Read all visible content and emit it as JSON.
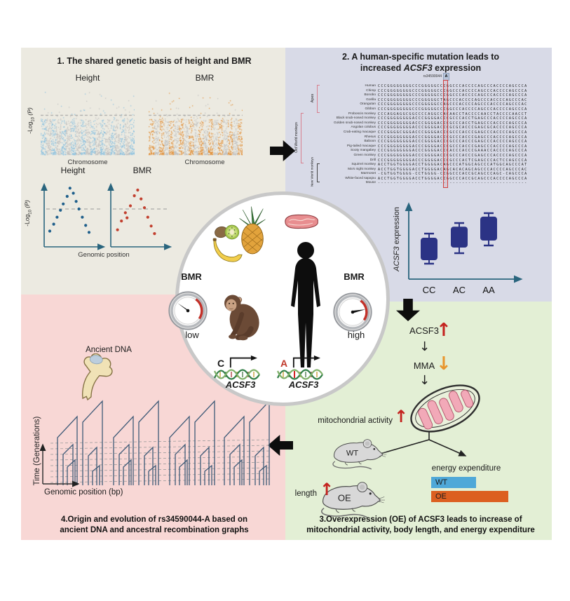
{
  "colors": {
    "panel1_bg": "#ECEAE1",
    "panel2_bg": "#D8DAE7",
    "panel3_bg": "#E3EFD5",
    "panel4_bg": "#F8D7D5",
    "accent_red": "#C4231F",
    "accent_orange": "#E8952C",
    "navy_box": "#2B3385",
    "wt_bar_blue": "#4FA8D8",
    "oe_bar_orange": "#DC5F20",
    "axis_teal": "#2A657E",
    "height_manhattan_blue": "#85BEDF",
    "bmr_manhattan_orange": "#E08A2E",
    "manhattan_gray": "#BDBDBD",
    "tree_line": "#3E5A77",
    "snp_box_red": "#D14040"
  },
  "panel1": {
    "title": "1. The shared genetic basis of height and BMR",
    "gwas_height_label": "Height",
    "gwas_bmr_label": "BMR",
    "ylabel_pre": "-Log",
    "ylabel_sub": "10",
    "ylabel_post": " (P)",
    "xlabel_chrom": "Chromosome",
    "scatter_height_label": "Height",
    "scatter_bmr_label": "BMR",
    "xlabel_genomic": "Genomic position"
  },
  "panel2": {
    "title_line1": "2. A human-specific mutation leads to",
    "title_pre": "increased ",
    "title_gene": "ACSF3",
    "title_post": " expression",
    "snp_label": "rs34590044",
    "snp_allele": "A",
    "group_apes": "Apes",
    "group_owm": "Old World monkeys",
    "group_nwm": "New World monkeys",
    "expr_ylabel_gene": "ACSF3",
    "expr_ylabel_post": " expression",
    "alignment": [
      {
        "name": "Human",
        "seq": "CCCGGGGGGGGCCCGGGGGCCCGGCCCACCCCAGCCCACCCCAGCCCA"
      },
      {
        "name": "Chimp",
        "seq": "CCCGGGGGGGGCCCGGGGGCCCGGCCCACCCCAGCCCACCCCAGCCCA"
      },
      {
        "name": "Bonobo",
        "seq": "CCCGGGGGGGGCCCGGGGGCCCGGCCCACCCCAGCCCACCCCAGCCCA"
      },
      {
        "name": "Gorilla",
        "seq": "CCCGGGGGGGGCCCGGGGGCTAGCCCACCCCAGCCCACCCCAGCCCAC"
      },
      {
        "name": "Orangutan",
        "seq": "CCCGGGGGGGGCCCGGGGGCCAGCCCACCCCAGCCCACCCCAGCCCAC"
      },
      {
        "name": "Gibbon",
        "seq": "CCCGGGGGGGGCCCGGGGGCCCGGCCCACCCCAGCCCACCCCAGCCCA"
      },
      {
        "name": "Proboscis monkey",
        "seq": "CCCAGGAGGCGGCCCCAGGCCACAACCTACCCCAACCTACCCCAACCT"
      },
      {
        "name": "Black snub-nosed monkey",
        "seq": "CCCGGGGGGGGACCCGGGGACCCGCCCACCTGAGCCCACCCCAGCCCA"
      },
      {
        "name": "Golden snub-nosed monkey",
        "seq": "CCCGGGGGGGGACCCGGGGACCCGCCCACCTGAGCCCACCCCAGCCCA"
      },
      {
        "name": "Angolan colobus",
        "seq": "CCCGGGGGGGGACCCGGGGACCCGCGCACCCGAGCGCACCCCAGCCCA"
      },
      {
        "name": "Crab-eating macaque",
        "seq": "CCCGGGGCGGGACCCGGGGACCCGCCCACCCGAGCCCACCCCAGCCCA"
      },
      {
        "name": "Rhesus",
        "seq": "CCCGGGGGGGGACCCGGGGACCCGCCCACCCGAGCCCACCCCAGCCCA"
      },
      {
        "name": "Baboon",
        "seq": "CCCGGGGGGGGACCCGGGGACCCGCCCACCCGAGCCCACCCCAGCCCA"
      },
      {
        "name": "Pig-tailed macaque",
        "seq": "CCCGGGGGGGGACCCGGGGACCCGCCCACCCGAGCCCACCCCAGCCCA"
      },
      {
        "name": "Sooty mangabey",
        "seq": "CCCGGGGGGGGACCCGGGGACCCACCCACCCGAAACCACCCCAGCCCA"
      },
      {
        "name": "Green monkey",
        "seq": "CCCGGGGGGGGACCCGGGGACCCGCCCACCCGAGCCCACCCCAGCCCA"
      },
      {
        "name": "Drill",
        "seq": "CCCGGGGGGGGACCCGGGGACCCGCCCACTCGAGCCCACTCCAGCCCA"
      },
      {
        "name": "Squirrel monkey",
        "seq": "ACCTGGTGGGGACCTGGGGACAGCCCATGGCAGCCCATGGCAGCCCAT"
      },
      {
        "name": "Ma's night monkey",
        "seq": "ACCTGGTGGGGACCTGGGGACAGCACACAGCAGCCCACCCCAGCCCAC"
      },
      {
        "name": "Marmoset",
        "seq": "-CGTGGTGGGG-CCTGGGG-CCGGCCCACCGCAGCCCAGC-CAGCCCA"
      },
      {
        "name": "White-faced sapajou",
        "seq": "ACCTGGTGGGGACCTGGGGACCGGCCCACCGCAGCCCACCCCAGCCCA"
      },
      {
        "name": "Mouse",
        "seq": "------------------------------------------------"
      }
    ],
    "highlight_col": 21
  },
  "panel3": {
    "acsf3": "ACSF3",
    "mma": "MMA",
    "mito_label": "mitochondrial activity",
    "length_label": "length",
    "energy_label": "energy expenditure",
    "wt": "WT",
    "oe": "OE",
    "caption_line1": "3.Overexpression (OE) of ACSF3 leads to increase of",
    "caption_line2": "mitochondrial activity, body length, and energy expenditure"
  },
  "panel4": {
    "ancient_dna": "Ancient DNA",
    "ylabel": "Time (Generations)",
    "xlabel": "Genomic position (bp)",
    "caption_line1": "4.Origin and evolution of rs34590044-A based on",
    "caption_line2": "ancient DNA and ancestral recombination graphs"
  },
  "center": {
    "bmr": "BMR",
    "low": "low",
    "high": "high",
    "allele_low": "C",
    "allele_high": "A",
    "gene": "ACSF3"
  },
  "chart_data": [
    {
      "id": "gwas_height",
      "type": "scatter",
      "style": "manhattan",
      "title": "Height",
      "ylabel": "-Log10 (P)",
      "xlabel": "Chromosome",
      "accent_color": "#85BEDF",
      "base_color": "#BDBDBD",
      "threshold_frac": 0.4,
      "note": "dense GWAS Manhattan plot, alternating chromosome colors, significance threshold dashed"
    },
    {
      "id": "gwas_bmr",
      "type": "scatter",
      "style": "manhattan",
      "title": "BMR",
      "ylabel": "-Log10 (P)",
      "xlabel": "Chromosome",
      "accent_color": "#E08A2E",
      "base_color": "#BDBDBD",
      "threshold_frac": 0.4,
      "note": "dense GWAS Manhattan plot, alternating chromosome colors, significance threshold dashed"
    },
    {
      "id": "locus_height",
      "type": "scatter",
      "title": "Height",
      "xlabel": "Genomic position",
      "ylabel": "-Log10 (P)",
      "color": "#1F5F8B",
      "threshold_frac": 0.6,
      "points_frac": [
        [
          0.1,
          0.25
        ],
        [
          0.17,
          0.36
        ],
        [
          0.23,
          0.47
        ],
        [
          0.29,
          0.58
        ],
        [
          0.34,
          0.68
        ],
        [
          0.41,
          0.8
        ],
        [
          0.46,
          0.93
        ],
        [
          0.52,
          0.85
        ],
        [
          0.57,
          0.72
        ],
        [
          0.62,
          0.6
        ],
        [
          0.68,
          0.47
        ],
        [
          0.74,
          0.34
        ],
        [
          0.8,
          0.23
        ]
      ]
    },
    {
      "id": "locus_bmr",
      "type": "scatter",
      "title": "BMR",
      "xlabel": "Genomic position",
      "ylabel": "-Log10 (P)",
      "color": "#C2402F",
      "threshold_frac": 0.6,
      "points_frac": [
        [
          0.12,
          0.27
        ],
        [
          0.19,
          0.41
        ],
        [
          0.26,
          0.54
        ],
        [
          0.29,
          0.46
        ],
        [
          0.35,
          0.65
        ],
        [
          0.42,
          0.81
        ],
        [
          0.48,
          0.9
        ],
        [
          0.54,
          0.76
        ],
        [
          0.6,
          0.62
        ],
        [
          0.66,
          0.47
        ],
        [
          0.72,
          0.33
        ],
        [
          0.78,
          0.21
        ]
      ]
    },
    {
      "id": "acsf3_expression",
      "type": "box",
      "ylabel": "ACSF3 expression",
      "categories": [
        "CC",
        "AC",
        "AA"
      ],
      "color": "#2B3385",
      "boxes_frac": [
        {
          "lo": 0.2,
          "q1": 0.245,
          "q3": 0.536,
          "hi": 0.59
        },
        {
          "lo": 0.336,
          "q1": 0.409,
          "q3": 0.68,
          "hi": 0.727
        },
        {
          "lo": 0.436,
          "q1": 0.5,
          "q3": 0.81,
          "hi": 0.855
        }
      ]
    },
    {
      "id": "energy_expenditure",
      "type": "bar",
      "title": "energy expenditure",
      "categories": [
        "WT",
        "OE"
      ],
      "values_frac": [
        0.58,
        1.0
      ],
      "colors": [
        "#4FA8D8",
        "#DC5F20"
      ]
    }
  ]
}
